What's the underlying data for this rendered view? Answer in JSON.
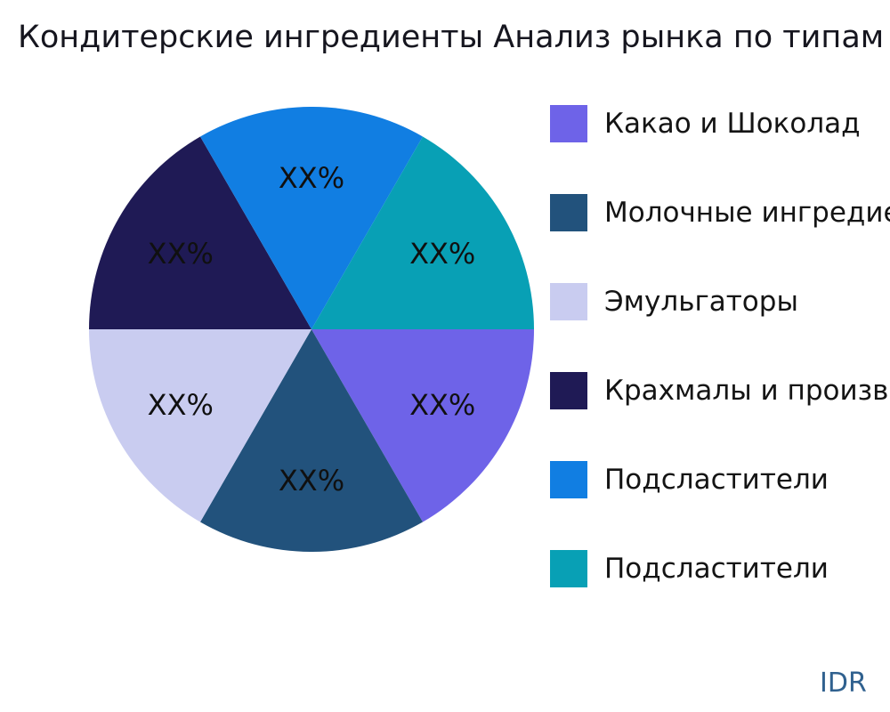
{
  "title": "Кондитерские ингредиенты Анализ рынка по типам",
  "watermark": {
    "text": "IDR",
    "color": "#30618F"
  },
  "chart_data": {
    "type": "pie",
    "title": "Кондитерские ингредиенты Анализ рынка по типам",
    "legend_position": "right",
    "start_angle_deg": 0,
    "direction": "clockwise",
    "pct_label_color": "#101010",
    "pct_label_distance": 0.68,
    "slices": [
      {
        "label": "Какао и Шоколад",
        "value": 16.67,
        "pct_label": "XX%",
        "color": "#6E63E8"
      },
      {
        "label": "Молочные ингредие",
        "value": 16.67,
        "pct_label": "XX%",
        "color": "#22527C"
      },
      {
        "label": "Эмульгаторы",
        "value": 16.67,
        "pct_label": "XX%",
        "color": "#C9CCF0"
      },
      {
        "label": "Крахмалы и произво",
        "value": 16.67,
        "pct_label": "XX%",
        "color": "#1F1A55"
      },
      {
        "label": "Подсластители",
        "value": 16.67,
        "pct_label": "XX%",
        "color": "#117EE2"
      },
      {
        "label": "Подсластители",
        "value": 16.67,
        "pct_label": "XX%",
        "color": "#08A0B5"
      }
    ]
  }
}
